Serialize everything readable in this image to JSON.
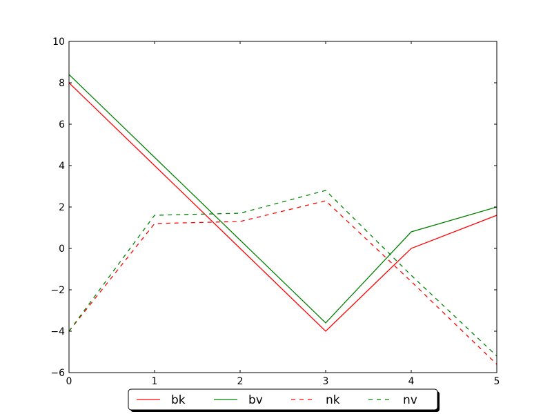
{
  "chart_data": {
    "type": "line",
    "title": "",
    "xlabel": "",
    "ylabel": "",
    "x": [
      0,
      1,
      2,
      3,
      4,
      5
    ],
    "xlim": [
      0,
      5
    ],
    "ylim": [
      -6,
      10
    ],
    "xticks": [
      0,
      1,
      2,
      3,
      4,
      5
    ],
    "yticks": [
      -6,
      -4,
      -2,
      0,
      2,
      4,
      6,
      8,
      10
    ],
    "ytick_labels": [
      "−6",
      "−4",
      "−2",
      "0",
      "2",
      "4",
      "6",
      "8",
      "10"
    ],
    "grid": false,
    "legend_position": "bottom-center, below axes",
    "series": [
      {
        "name": "bk",
        "color": "#ff0000",
        "style": "solid",
        "values": [
          8.0,
          4.0,
          0.0,
          -4.0,
          0.0,
          1.6
        ]
      },
      {
        "name": "bv",
        "color": "#008000",
        "style": "solid",
        "values": [
          8.4,
          4.4,
          0.4,
          -3.6,
          0.8,
          2.0
        ]
      },
      {
        "name": "nk",
        "color": "#ff0000",
        "style": "dashed",
        "values": [
          -4.0,
          1.2,
          1.3,
          2.3,
          -1.6,
          -5.6
        ]
      },
      {
        "name": "nv",
        "color": "#008000",
        "style": "dashed",
        "values": [
          -4.0,
          1.6,
          1.7,
          2.8,
          -1.3,
          -5.2
        ]
      }
    ]
  }
}
